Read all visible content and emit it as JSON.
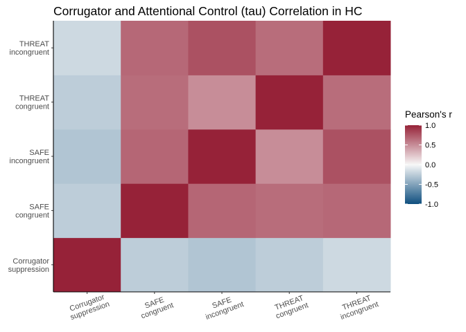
{
  "chart_data": {
    "type": "heatmap",
    "title": "Corrugator and Attentional Control (tau) Correlation in HC",
    "xlabel": "",
    "ylabel": "",
    "x_categories": [
      [
        "Corrugator",
        "suppression"
      ],
      [
        "SAFE",
        "congruent"
      ],
      [
        "SAFE",
        "incongruent"
      ],
      [
        "THREAT",
        "congruent"
      ],
      [
        "THREAT",
        "incongruent"
      ]
    ],
    "y_categories": [
      [
        "Corrugator",
        "suppression"
      ],
      [
        "SAFE",
        "congruent"
      ],
      [
        "SAFE",
        "incongruent"
      ],
      [
        "THREAT",
        "congruent"
      ],
      [
        "THREAT",
        "incongruent"
      ]
    ],
    "matrix": [
      [
        1.0,
        -0.25,
        -0.3,
        -0.25,
        -0.18
      ],
      [
        -0.25,
        1.0,
        0.68,
        0.65,
        0.67
      ],
      [
        -0.3,
        0.68,
        1.0,
        0.5,
        0.78
      ],
      [
        -0.25,
        0.65,
        0.5,
        1.0,
        0.65
      ],
      [
        -0.18,
        0.67,
        0.78,
        0.65,
        1.0
      ]
    ],
    "legend": {
      "title": "Pearson's r",
      "position": "right",
      "range": [
        -1,
        1
      ],
      "ticks": [
        "1.0",
        "0.5",
        "0.0",
        "-0.5",
        "-1.0"
      ],
      "tick_values": [
        1.0,
        0.5,
        0.0,
        -0.5,
        -1.0
      ]
    },
    "colors": {
      "low": "#0f4f7f",
      "mid": "#f7f7f7",
      "high": "#962238"
    },
    "grid": false
  }
}
